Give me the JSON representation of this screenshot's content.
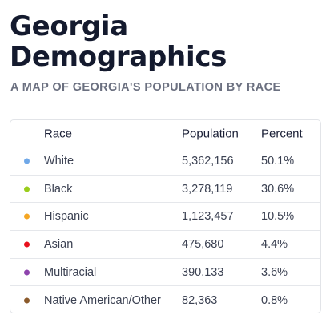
{
  "title": "Georgia Demographics",
  "subtitle": "A MAP OF GEORGIA'S POPULATION BY RACE",
  "table": {
    "headers": {
      "race": "Race",
      "population": "Population",
      "percent": "Percent"
    },
    "rows": [
      {
        "race": "White",
        "population": "5,362,156",
        "percent": "50.1%",
        "color": "#6fa8e8"
      },
      {
        "race": "Black",
        "population": "3,278,119",
        "percent": "30.6%",
        "color": "#9acd1c"
      },
      {
        "race": "Hispanic",
        "population": "1,123,457",
        "percent": "10.5%",
        "color": "#f5a623"
      },
      {
        "race": "Asian",
        "population": "475,680",
        "percent": "4.4%",
        "color": "#e8101c"
      },
      {
        "race": "Multiracial",
        "population": "390,133",
        "percent": "3.6%",
        "color": "#8e44ad"
      },
      {
        "race": "Native American/Other",
        "population": "82,363",
        "percent": "0.8%",
        "color": "#8b5a2b"
      }
    ]
  }
}
